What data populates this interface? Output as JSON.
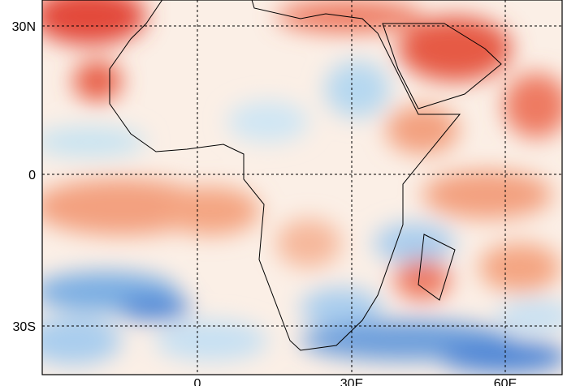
{
  "map": {
    "lat_labels": [
      "30N",
      "0",
      "30S"
    ],
    "lon_labels": [
      "0",
      "30E",
      "60E"
    ]
  }
}
